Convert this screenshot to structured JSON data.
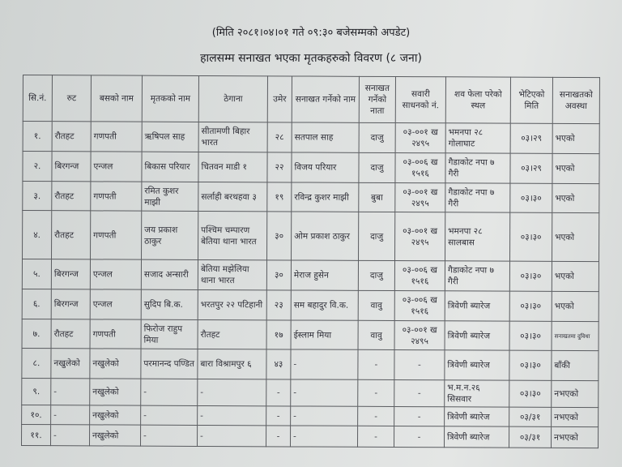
{
  "update_note": "(मिति २०८१।०४।०१ गते ०९:३० बजेसम्मको अपडेट)",
  "title": "हालसम्म सनाखत भएका मृतकहरुको विवरण (८ जना)",
  "columns": [
    "सि.नं.",
    "रुट",
    "बसको नाम",
    "मृतकको नाम",
    "ठेगाना",
    "उमेर",
    "सनाखत गर्नेको नाम",
    "सनाखत गर्नेको नाता",
    "सवारी साधनको नं.",
    "शव फेला परेको स्थल",
    "भेटिएको मिति",
    "सनाखतको अवस्था"
  ],
  "rows": [
    [
      "१.",
      "रौतहट",
      "गणपती",
      "ऋषिपल साह",
      "सीतामणी बिहार भारत",
      "२८",
      "सतपाल साह",
      "दाजु",
      "०३-००१ ख २४९५",
      "भमनपा २८ गोलाघाट",
      "०३।२९",
      "भएको"
    ],
    [
      "२.",
      "बिरगन्ज",
      "एन्जल",
      "बिकास परियार",
      "चितवन माडी १",
      "२२",
      "विजय परियार",
      "दाजु",
      "०३-००६ ख १५१६",
      "गैडाकोट नपा ७ गैरी",
      "०३।२९",
      "भएको"
    ],
    [
      "३.",
      "रौतहट",
      "गणपती",
      "रमित कुशर माझी",
      "सर्लाही बरथहवा ३",
      "१९",
      "रविन्द्र कुशर माझी",
      "बुबा",
      "०३-००१ ख २४९५",
      "गैडाकोट नपा ७ गैरी",
      "०३।३०",
      "भएको"
    ],
    [
      "४.",
      "रौतहट",
      "गणपती",
      "जय प्रकाश ठाकुर",
      "पश्चिम चम्पारण बेतिया थाना भारत",
      "३०",
      "ओम प्रकाश ठाकुर",
      "दाजु",
      "०३-००१ ख २४९५",
      "भमनपा २८ सालबास",
      "०३।३०",
      "भएको"
    ],
    [
      "५.",
      "बिरगन्ज",
      "एन्जल",
      "सजाद अन्सारी",
      "बेतिया मझेलिया थाना भारत",
      "३०",
      "मेराज हुसेन",
      "दाजु",
      "०३-००६ ख १५१६",
      "गैडाकोट नपा ७ गैरी",
      "०३।३०",
      "भएको"
    ],
    [
      "६.",
      "बिरगन्ज",
      "एन्जल",
      "सुदिप बि.क.",
      "भरतपुर २२ पटिहानी",
      "२३",
      "सम बहादुर वि.क.",
      "वावु",
      "०३-००६ ख १५१६",
      "त्रिवेणी ब्यारेज",
      "०३।३०",
      "भएको"
    ],
    [
      "७.",
      "रौतहट",
      "गणपती",
      "फिरोज राहुप मिया",
      "रौतहट",
      "१७",
      "ईस्लाम मिया",
      "वावु",
      "०३-००१ ख २४९५",
      "त्रिवेणी ब्यारेज",
      "०३।३०",
      "सनाखतमा दुविधा"
    ],
    [
      "८.",
      "नखुलेको",
      "नखुलेको",
      "परमानन्द पण्डित",
      "बारा विश्रामपुर ६",
      "४३",
      "-",
      "-",
      "-",
      "त्रिवेणी ब्यारेज",
      "०३।३०",
      "बाँकी"
    ],
    [
      "९.",
      "-",
      "नखुलेको",
      "-",
      "-",
      "-",
      "-",
      "-",
      "-",
      "भ.म.न.२६ सिसवार",
      "०३।३०",
      "नभएको"
    ],
    [
      "१०.",
      "-",
      "नखुलेको",
      "-",
      "-",
      "-",
      "-",
      "-",
      "-",
      "त्रिवेणी ब्यारेज",
      "०३/३१",
      "नभएको"
    ],
    [
      "११.",
      "-",
      "नखुलेको",
      "-",
      "-",
      "-",
      "-",
      "-",
      "-",
      "त्रिवेणी ब्यारेज",
      "०३/३१",
      "नभएको"
    ]
  ]
}
